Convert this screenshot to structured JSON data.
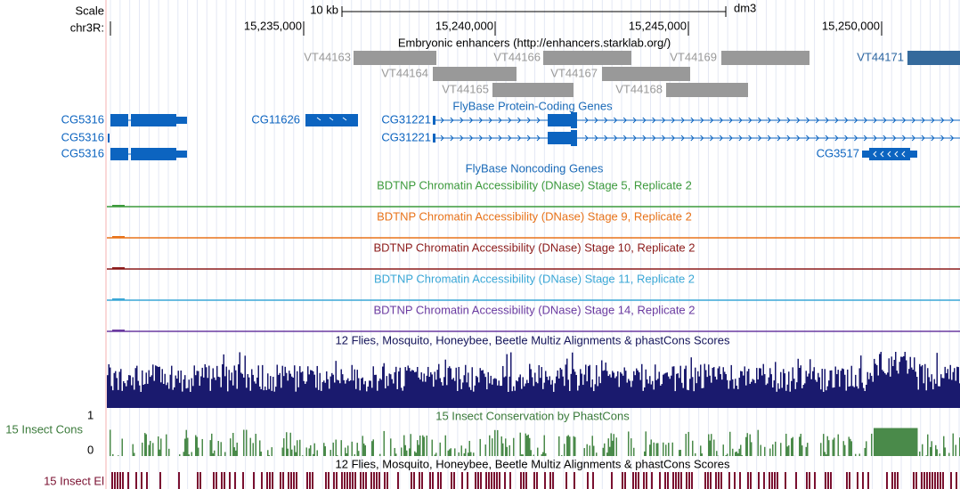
{
  "ruler": {
    "scale_label": "Scale",
    "chrom_label": "chr3R:",
    "scale_bar": "10 kb",
    "assembly": "dm3",
    "ticks": [
      "15,235,000",
      "15,240,000",
      "15,245,000",
      "15,250,000"
    ]
  },
  "tracks": {
    "enhancers": {
      "title": "Embryonic enhancers (http://enhancers.starklab.org/)",
      "items": [
        "VT44163",
        "VT44166",
        "VT44169",
        "VT44171",
        "VT44164",
        "VT44167",
        "VT44165",
        "VT44168"
      ]
    },
    "genes": {
      "title": "FlyBase Protein-Coding Genes",
      "items": [
        "CG5316",
        "CG11626",
        "CG31221",
        "CG5316",
        "CG31221",
        "CG5316",
        "CG3517"
      ]
    },
    "noncoding": {
      "title": "FlyBase Noncoding Genes"
    },
    "dnase": [
      {
        "title": "BDTNP Chromatin Accessibility (DNase) Stage 5, Replicate 2",
        "color": "#3c9a3c"
      },
      {
        "title": "BDTNP Chromatin Accessibility (DNase) Stage 9, Replicate 2",
        "color": "#e8731a"
      },
      {
        "title": "BDTNP Chromatin Accessibility (DNase) Stage 10, Replicate 2",
        "color": "#8b1a1a"
      },
      {
        "title": "BDTNP Chromatin Accessibility (DNase) Stage 11, Replicate 2",
        "color": "#3aa7d6"
      },
      {
        "title": "BDTNP Chromatin Accessibility (DNase) Stage 14, Replicate 2",
        "color": "#6a3aa0"
      }
    ],
    "multiz": {
      "title": "12 Flies, Mosquito, Honeybee, Beetle Multiz Alignments & phastCons Scores"
    },
    "phastcons": {
      "title": "15 Insect Conservation by PhastCons",
      "side_label": "15 Insect Cons",
      "y_max": 1,
      "y_min": 0
    },
    "elements": {
      "title": "12 Flies, Mosquito, Honeybee, Beetle Multiz Alignments & phastCons Scores",
      "side_label": "15 Insect El"
    }
  }
}
